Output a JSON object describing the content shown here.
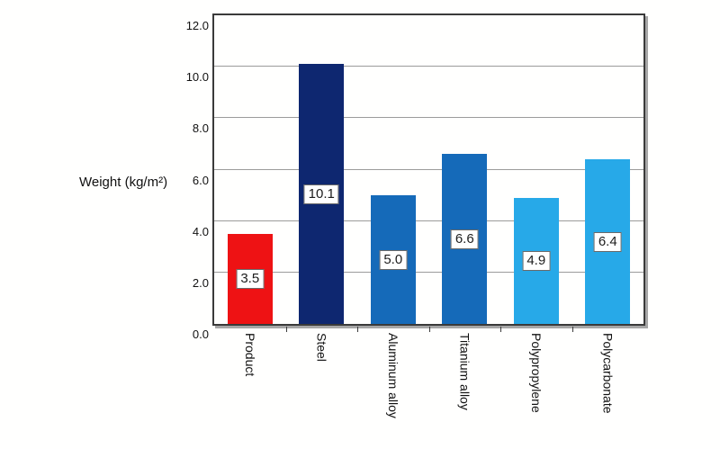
{
  "chart_data": {
    "type": "bar",
    "title": "",
    "ylabel": "Weight (kg/m²)",
    "xlabel": "",
    "categories": [
      "Product",
      "Steel",
      "Aluminum alloy",
      "Titanium alloy",
      "Polypropylene",
      "Polycarbonate"
    ],
    "values": [
      3.5,
      10.1,
      5.0,
      6.6,
      4.9,
      6.4
    ],
    "value_labels": [
      "3.5",
      "10.1",
      "5.0",
      "6.6",
      "4.9",
      "6.4"
    ],
    "bar_colors": [
      "#ee1214",
      "#0e2770",
      "#156ab9",
      "#156ab9",
      "#27a9e8",
      "#27a9e8"
    ],
    "ylim": [
      0,
      12
    ],
    "ytick_interval": 2,
    "ytick_labels": [
      "0.0",
      "2.0",
      "4.0",
      "6.0",
      "8.0",
      "10.0",
      "12.0"
    ],
    "grid": true,
    "legend": false,
    "gridline_color": "#9b9b9b",
    "axis_border_color": "#3a3a3a",
    "background_color": "#fffffe"
  }
}
